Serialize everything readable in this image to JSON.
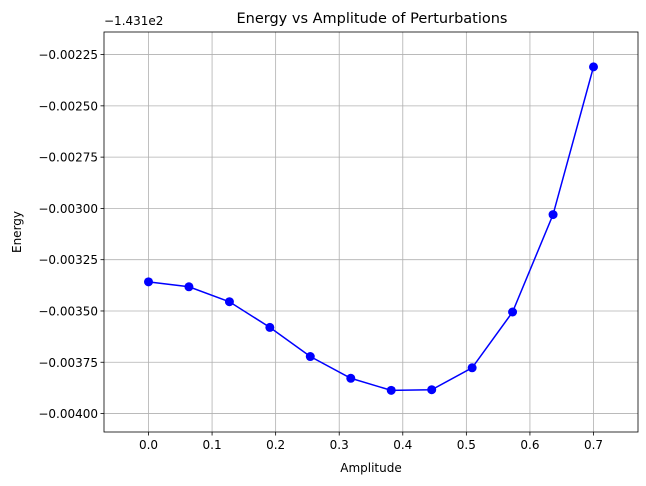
{
  "chart_data": {
    "type": "line",
    "title": "Energy vs Amplitude of Perturbations",
    "xlabel": "Amplitude",
    "ylabel": "Energy",
    "y_offset_label": "−1.431e2",
    "grid": true,
    "xlim": [
      -0.07,
      0.77
    ],
    "ylim": [
      -0.00409,
      -0.00214
    ],
    "x_ticks": [
      0.0,
      0.1,
      0.2,
      0.3,
      0.4,
      0.5,
      0.6,
      0.7
    ],
    "x_tick_labels": [
      "0.0",
      "0.1",
      "0.2",
      "0.3",
      "0.4",
      "0.5",
      "0.6",
      "0.7"
    ],
    "y_ticks": [
      -0.004,
      -0.00375,
      -0.0035,
      -0.00325,
      -0.003,
      -0.00275,
      -0.0025,
      -0.00225
    ],
    "y_tick_labels": [
      "−0.00400",
      "−0.00375",
      "−0.00350",
      "−0.00325",
      "−0.00300",
      "−0.00275",
      "−0.00250",
      "−0.00225"
    ],
    "series": [
      {
        "color": "#0000ff",
        "marker": "circle",
        "x": [
          0.0,
          0.0636,
          0.1273,
          0.1909,
          0.2545,
          0.3182,
          0.3818,
          0.4455,
          0.5091,
          0.5727,
          0.6364,
          0.7
        ],
        "values": [
          -0.003358,
          -0.003382,
          -0.003455,
          -0.00358,
          -0.003722,
          -0.003828,
          -0.003887,
          -0.003884,
          -0.003777,
          -0.003505,
          -0.00303,
          -0.00231
        ]
      }
    ]
  }
}
